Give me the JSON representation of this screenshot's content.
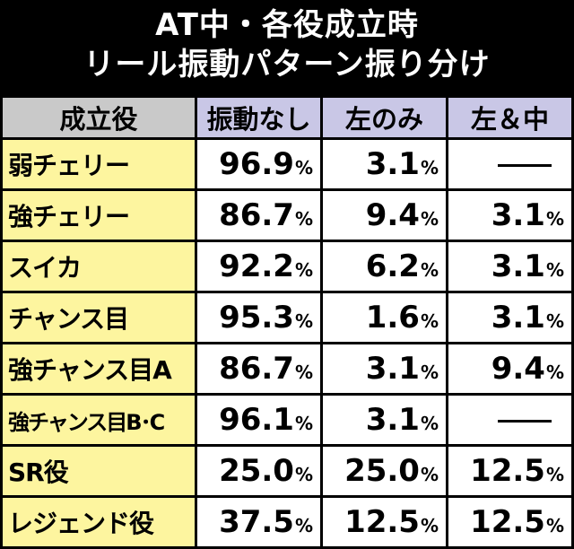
{
  "title": {
    "line1": "AT中・各役成立時",
    "line2": "リール振動パターン振り分け"
  },
  "table": {
    "headers": [
      "成立役",
      "振動なし",
      "左のみ",
      "左＆中"
    ],
    "rows": [
      {
        "role": "弱チェリー",
        "none": "96.9",
        "left": "3.1",
        "left_mid": null
      },
      {
        "role": "強チェリー",
        "none": "86.7",
        "left": "9.4",
        "left_mid": "3.1"
      },
      {
        "role": "スイカ",
        "none": "92.2",
        "left": "6.2",
        "left_mid": "3.1"
      },
      {
        "role": "チャンス目",
        "none": "95.3",
        "left": "1.6",
        "left_mid": "3.1"
      },
      {
        "role": "強チャンス目A",
        "none": "86.7",
        "left": "3.1",
        "left_mid": "9.4"
      },
      {
        "role": "強チャンス目B･C",
        "none": "96.1",
        "left": "3.1",
        "left_mid": null
      },
      {
        "role": "SR役",
        "none": "25.0",
        "left": "25.0",
        "left_mid": "12.5"
      },
      {
        "role": "レジェンド役",
        "none": "37.5",
        "left": "12.5",
        "left_mid": "12.5"
      }
    ],
    "unit": "%"
  },
  "colors": {
    "header_role_bg": "#c9c9c9",
    "header_value_bg": "#c9c7e6",
    "role_cell_bg": "#fdf59f",
    "value_cell_bg": "#ffffff",
    "border": "#000000",
    "title_bg": "#000000",
    "title_text": "#ffffff"
  }
}
